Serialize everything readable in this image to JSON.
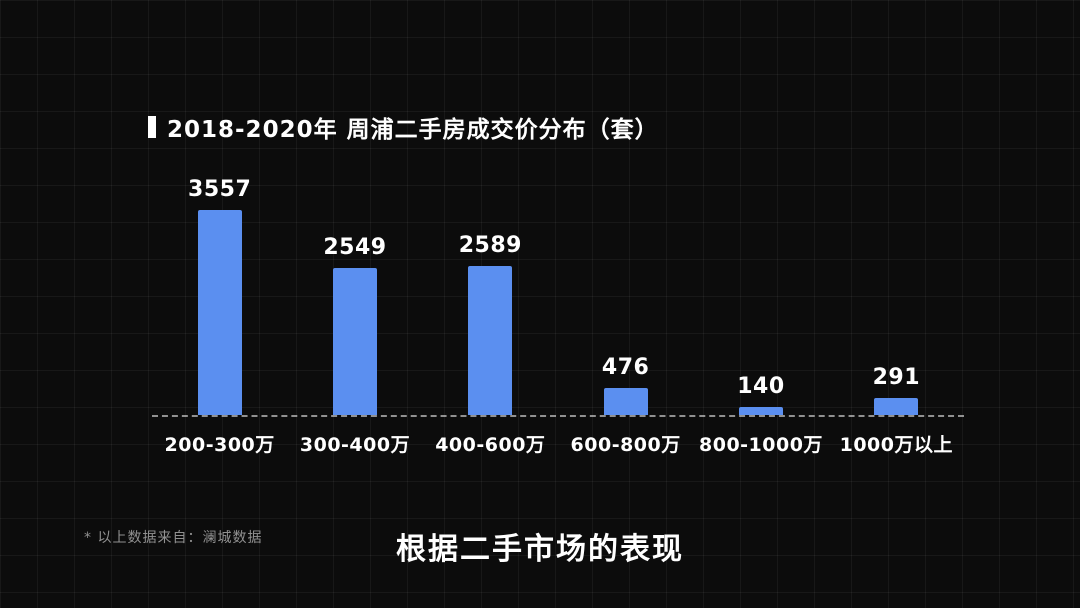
{
  "title": {
    "text": "2018-2020年 周浦二手房成交价分布（套）"
  },
  "chart_data": {
    "type": "bar",
    "title": "2018-2020年 周浦二手房成交价分布（套）",
    "categories": [
      "200-300万",
      "300-400万",
      "400-600万",
      "600-800万",
      "800-1000万",
      "1000万以上"
    ],
    "values": [
      3557,
      2549,
      2589,
      476,
      140,
      291
    ],
    "xlabel": "",
    "ylabel": "",
    "ylim": [
      0,
      3700
    ],
    "grid": false,
    "legend": "none",
    "baseline_style": "dashed",
    "bar_color": "#5b8ff0",
    "value_labels": "above-bars"
  },
  "footnote": "* 以上数据来自：澜城数据",
  "caption": "根据二手市场的表现",
  "colors": {
    "background": "#0c0c0c",
    "bar": "#5b8ff0",
    "text": "#ffffff",
    "footnote_text": "#919191"
  }
}
